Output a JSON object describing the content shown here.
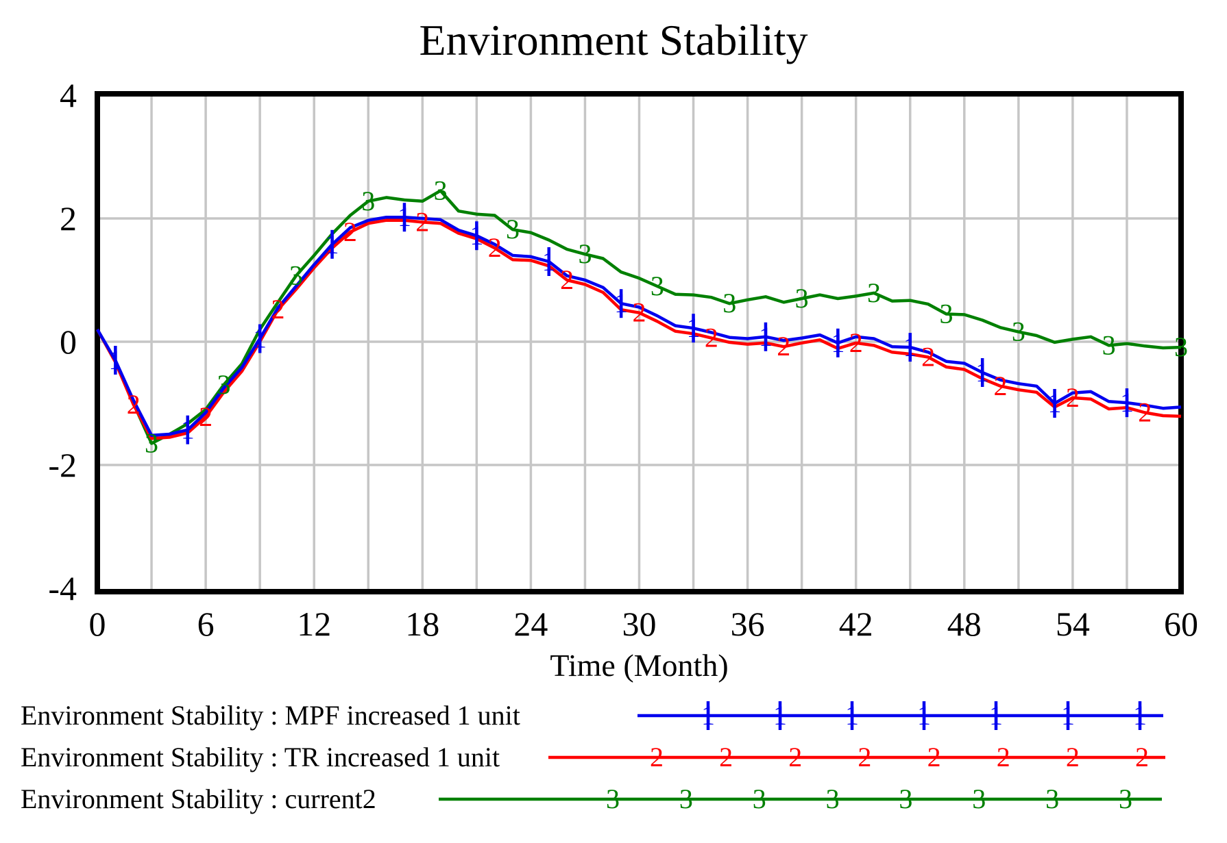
{
  "title": "Environment Stability",
  "axes": {
    "x_label": "Time (Month)",
    "x_ticks": [
      0,
      6,
      12,
      18,
      24,
      30,
      36,
      42,
      48,
      54,
      60
    ],
    "x_grid_step": 3,
    "x_range": [
      0,
      60
    ],
    "y_ticks": [
      4,
      2,
      0,
      -2,
      -4
    ],
    "y_grid_values": [
      2,
      0,
      -2
    ],
    "y_range": [
      -4.1,
      4.1
    ]
  },
  "colors": {
    "mpf": "#0000ee",
    "tr": "#ff0000",
    "current2": "#008000",
    "grid": "#c6c6c6",
    "border": "#000000",
    "text": "#000000",
    "background": "#ffffff"
  },
  "chart_data": {
    "type": "line",
    "title": "Environment Stability",
    "xlabel": "Time (Month)",
    "ylabel": "",
    "x_range": [
      0,
      60
    ],
    "ylim": [
      -4.1,
      4.1
    ],
    "x_step": 1,
    "grid": true,
    "legend_position": "bottom-left",
    "series": [
      {
        "name": "Environment Stability : MPF increased 1 unit",
        "marker": "1",
        "color": "#0000ee",
        "marker_months": [
          1,
          5,
          9,
          13,
          17,
          21,
          25,
          29,
          33,
          37,
          41,
          45,
          49,
          53,
          57
        ],
        "values": [
          0.2,
          -0.3,
          -0.95,
          -1.52,
          -1.5,
          -1.43,
          -1.15,
          -0.75,
          -0.42,
          0.05,
          0.55,
          0.9,
          1.25,
          1.58,
          1.85,
          1.97,
          2.02,
          2.02,
          2.0,
          1.98,
          1.81,
          1.72,
          1.58,
          1.4,
          1.38,
          1.3,
          1.07,
          1.0,
          0.88,
          0.62,
          0.56,
          0.42,
          0.26,
          0.22,
          0.15,
          0.07,
          0.05,
          0.08,
          0.02,
          0.06,
          0.11,
          -0.02,
          0.08,
          0.05,
          -0.08,
          -0.09,
          -0.17,
          -0.32,
          -0.35,
          -0.5,
          -0.62,
          -0.68,
          -0.72,
          -1.0,
          -0.83,
          -0.81,
          -0.97,
          -0.99,
          -1.03,
          -1.08,
          -1.06
        ]
      },
      {
        "name": "Environment Stability : TR increased 1 unit",
        "marker": "2",
        "color": "#ff0000",
        "marker_months": [
          2,
          6,
          10,
          14,
          18,
          22,
          26,
          30,
          34,
          38,
          42,
          46,
          50,
          54,
          58
        ],
        "values": [
          0.2,
          -0.33,
          -1.02,
          -1.57,
          -1.55,
          -1.48,
          -1.22,
          -0.82,
          -0.48,
          0.0,
          0.52,
          0.85,
          1.2,
          1.52,
          1.78,
          1.92,
          1.97,
          1.97,
          1.94,
          1.92,
          1.76,
          1.67,
          1.52,
          1.33,
          1.32,
          1.23,
          1.0,
          0.93,
          0.8,
          0.52,
          0.47,
          0.33,
          0.17,
          0.13,
          0.06,
          -0.01,
          -0.04,
          -0.02,
          -0.08,
          -0.02,
          0.03,
          -0.11,
          -0.02,
          -0.06,
          -0.17,
          -0.2,
          -0.25,
          -0.41,
          -0.45,
          -0.6,
          -0.72,
          -0.78,
          -0.82,
          -1.06,
          -0.91,
          -0.93,
          -1.09,
          -1.07,
          -1.15,
          -1.2,
          -1.21
        ]
      },
      {
        "name": "Environment Stability : current2",
        "marker": "3",
        "color": "#008000",
        "marker_months": [
          3,
          7,
          11,
          15,
          19,
          23,
          27,
          31,
          35,
          39,
          43,
          47,
          51,
          56,
          60
        ],
        "values": [
          0.2,
          -0.32,
          -1.0,
          -1.65,
          -1.5,
          -1.33,
          -1.1,
          -0.7,
          -0.36,
          0.2,
          0.64,
          1.07,
          1.4,
          1.75,
          2.05,
          2.28,
          2.34,
          2.3,
          2.28,
          2.45,
          2.12,
          2.07,
          2.05,
          1.82,
          1.77,
          1.65,
          1.5,
          1.42,
          1.35,
          1.13,
          1.03,
          0.9,
          0.77,
          0.76,
          0.72,
          0.62,
          0.68,
          0.73,
          0.64,
          0.7,
          0.76,
          0.7,
          0.74,
          0.79,
          0.66,
          0.67,
          0.61,
          0.45,
          0.44,
          0.35,
          0.23,
          0.16,
          0.1,
          -0.01,
          0.04,
          0.08,
          -0.06,
          -0.03,
          -0.07,
          -0.1,
          -0.09
        ]
      }
    ]
  },
  "legend": {
    "marker_counts": [
      7,
      8,
      8
    ]
  }
}
